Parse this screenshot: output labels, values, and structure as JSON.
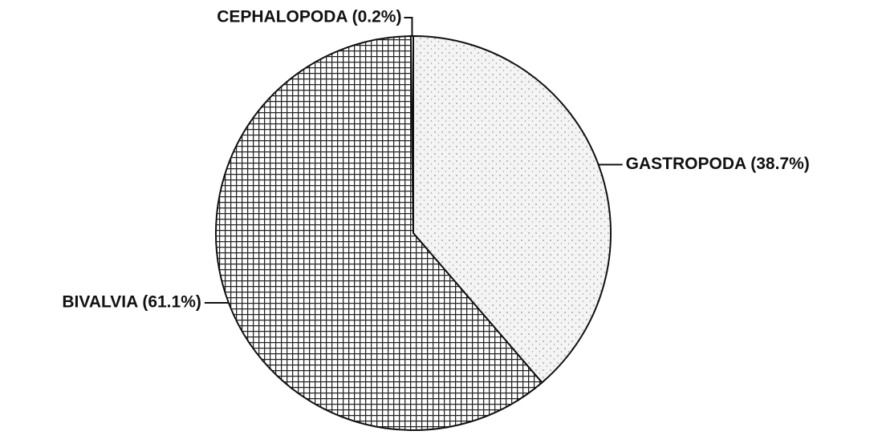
{
  "chart_data": {
    "type": "pie",
    "categories": [
      "GASTROPODA (38.7%)",
      "BIVALVIA (61.1%)",
      "CEPHALOPODA (0.2%)"
    ],
    "values": [
      38.7,
      61.1,
      0.2
    ]
  }
}
